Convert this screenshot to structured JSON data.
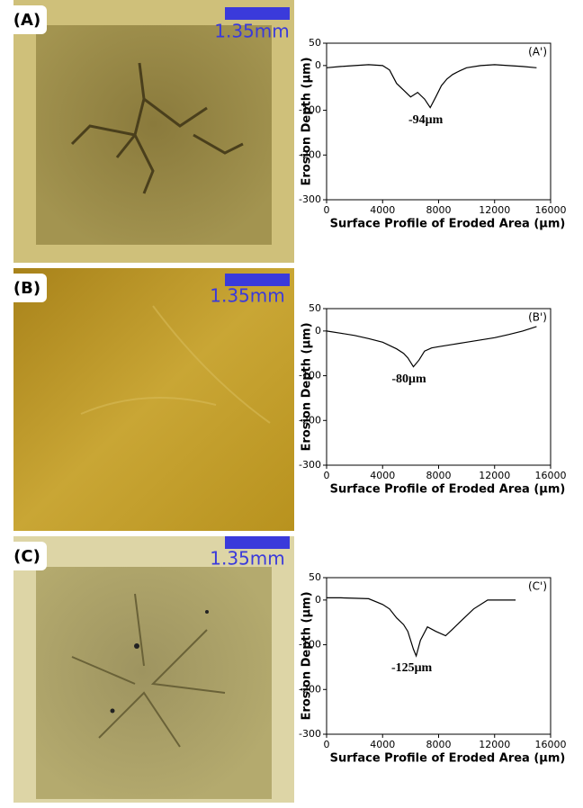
{
  "photos": [
    {
      "label": "(A)",
      "scale_bar": "1.35mm"
    },
    {
      "label": "(B)",
      "scale_bar": "1.35mm"
    },
    {
      "label": "(C)",
      "scale_bar": "1.35mm"
    }
  ],
  "chart_data": [
    {
      "type": "line",
      "panel_label": "(A')",
      "annotation": "-94μm",
      "ylabel": "Erosion Depth (μm)",
      "xlabel": "Surface Profile of Eroded Area (μm)",
      "x": [
        0,
        1000,
        2000,
        3000,
        4000,
        4500,
        5000,
        5500,
        6000,
        6500,
        7000,
        7400,
        7800,
        8200,
        8600,
        9000,
        9500,
        10000,
        11000,
        12000,
        13000,
        14000,
        15000
      ],
      "values": [
        -5,
        -2,
        0,
        2,
        0,
        -10,
        -40,
        -55,
        -70,
        -60,
        -75,
        -94,
        -70,
        -45,
        -30,
        -20,
        -12,
        -5,
        0,
        2,
        0,
        -2,
        -5
      ],
      "color": "#000000",
      "xlim": [
        0,
        16000
      ],
      "ylim": [
        -300,
        50
      ],
      "xticks": [
        0,
        4000,
        8000,
        12000,
        16000
      ],
      "yticks": [
        50,
        0,
        -100,
        -200,
        -300
      ]
    },
    {
      "type": "line",
      "panel_label": "(B')",
      "annotation": "-80μm",
      "ylabel": "Erosion Depth (μm)",
      "xlabel": "Surface Profile of Eroded Area (μm)",
      "x": [
        0,
        1000,
        2000,
        3000,
        4000,
        5000,
        5500,
        5800,
        6200,
        6600,
        7000,
        7500,
        8000,
        9000,
        10000,
        11000,
        12000,
        13000,
        14000,
        15000
      ],
      "values": [
        0,
        -5,
        -10,
        -17,
        -25,
        -40,
        -50,
        -60,
        -80,
        -65,
        -45,
        -38,
        -35,
        -30,
        -25,
        -20,
        -15,
        -8,
        0,
        10
      ],
      "color": "#000000",
      "xlim": [
        0,
        16000
      ],
      "ylim": [
        -300,
        50
      ],
      "xticks": [
        0,
        4000,
        8000,
        12000,
        16000
      ],
      "yticks": [
        50,
        0,
        -100,
        -200,
        -300
      ]
    },
    {
      "type": "line",
      "panel_label": "(C')",
      "annotation": "-125μm",
      "ylabel": "Erosion Depth (μm)",
      "xlabel": "Surface Profile of Eroded Area (μm)",
      "x": [
        0,
        1000,
        2000,
        3000,
        4000,
        4500,
        5000,
        5500,
        5800,
        6200,
        6400,
        6700,
        7200,
        7800,
        8500,
        9000,
        9500,
        10500,
        11500,
        12500,
        13500
      ],
      "values": [
        5,
        5,
        4,
        3,
        -10,
        -20,
        -40,
        -55,
        -70,
        -110,
        -125,
        -90,
        -60,
        -70,
        -80,
        -65,
        -50,
        -20,
        0,
        0,
        0
      ],
      "color": "#000000",
      "xlim": [
        0,
        16000
      ],
      "ylim": [
        -300,
        50
      ],
      "xticks": [
        0,
        4000,
        8000,
        12000,
        16000
      ],
      "yticks": [
        50,
        0,
        -100,
        -200,
        -300
      ]
    }
  ]
}
